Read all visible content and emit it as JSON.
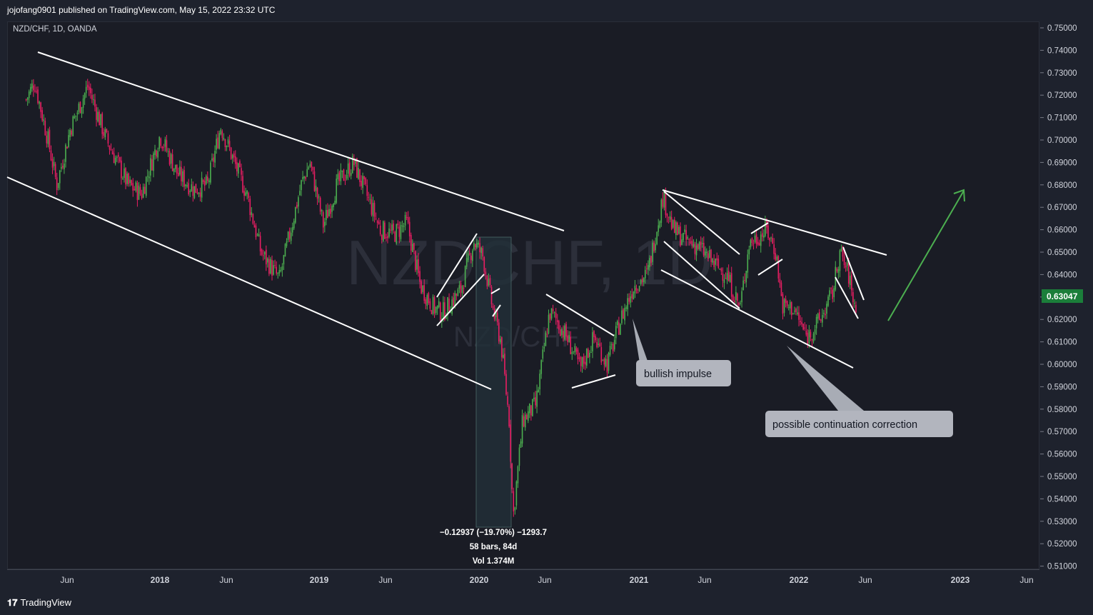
{
  "publisher_line": "jojofang0901 published on TradingView.com, May 15, 2022 23:32 UTC",
  "symbol_line": "NZD/CHF, 1D, OANDA",
  "watermark": {
    "big": "NZDCHF, 1D",
    "small": "NZD/CHF"
  },
  "footer": {
    "logo_mark": "𝟏𝟕",
    "logo_text": "TradingView"
  },
  "price_axis": {
    "ticks": [
      "0.75000",
      "0.74000",
      "0.73000",
      "0.72000",
      "0.71000",
      "0.70000",
      "0.69000",
      "0.68000",
      "0.67000",
      "0.66000",
      "0.65000",
      "0.64000",
      "0.63000",
      "0.62000",
      "0.61000",
      "0.60000",
      "0.59000",
      "0.58000",
      "0.57000",
      "0.56000",
      "0.55000",
      "0.54000",
      "0.53000",
      "0.52000",
      "0.51000"
    ],
    "current_price": "0.63047",
    "current_color": "#1b7e3a"
  },
  "time_axis": [
    {
      "label": "Jun",
      "bold": false
    },
    {
      "label": "2018",
      "bold": true
    },
    {
      "label": "Jun",
      "bold": false
    },
    {
      "label": "2019",
      "bold": true
    },
    {
      "label": "Jun",
      "bold": false
    },
    {
      "label": "2020",
      "bold": true
    },
    {
      "label": "Jun",
      "bold": false
    },
    {
      "label": "2021",
      "bold": true
    },
    {
      "label": "Jun",
      "bold": false
    },
    {
      "label": "2022",
      "bold": true
    },
    {
      "label": "Jun",
      "bold": false
    },
    {
      "label": "2023",
      "bold": true
    },
    {
      "label": "Jun",
      "bold": false
    }
  ],
  "measure": {
    "line1": "−0.12937 (−19.70%) −1293.7",
    "line2": "58 bars, 84d",
    "line3": "Vol 1.374M"
  },
  "annotations": {
    "bullish": "bullish impulse",
    "continuation": "possible continuation correction"
  },
  "colors": {
    "up": "#26a69a",
    "up_bright": "#4caf50",
    "down": "#e91e63",
    "arrow": "#4caf50"
  },
  "chart_data": {
    "type": "candlestick",
    "title": "NZD/CHF, 1D, OANDA",
    "ylim": [
      0.51,
      0.75
    ],
    "x_ticks": [
      "Jun",
      "2018",
      "Jun",
      "2019",
      "Jun",
      "2020",
      "Jun",
      "2021",
      "Jun",
      "2022",
      "Jun",
      "2023",
      "Jun"
    ],
    "close_path": [
      {
        "date": "2017-03-01",
        "price": 0.718
      },
      {
        "date": "2017-03-20",
        "price": 0.726
      },
      {
        "date": "2017-04-20",
        "price": 0.7
      },
      {
        "date": "2017-05-10",
        "price": 0.68
      },
      {
        "date": "2017-06-10",
        "price": 0.705
      },
      {
        "date": "2017-07-20",
        "price": 0.724
      },
      {
        "date": "2017-09-01",
        "price": 0.7
      },
      {
        "date": "2017-10-20",
        "price": 0.68
      },
      {
        "date": "2017-11-20",
        "price": 0.676
      },
      {
        "date": "2018-01-01",
        "price": 0.702
      },
      {
        "date": "2018-02-10",
        "price": 0.685
      },
      {
        "date": "2018-03-20",
        "price": 0.678
      },
      {
        "date": "2018-04-20",
        "price": 0.68
      },
      {
        "date": "2018-05-20",
        "price": 0.706
      },
      {
        "date": "2018-06-20",
        "price": 0.69
      },
      {
        "date": "2018-07-20",
        "price": 0.675
      },
      {
        "date": "2018-08-20",
        "price": 0.65
      },
      {
        "date": "2018-10-01",
        "price": 0.638
      },
      {
        "date": "2018-11-20",
        "price": 0.68
      },
      {
        "date": "2018-12-10",
        "price": 0.69
      },
      {
        "date": "2019-01-10",
        "price": 0.662
      },
      {
        "date": "2019-02-10",
        "price": 0.68
      },
      {
        "date": "2019-03-20",
        "price": 0.69
      },
      {
        "date": "2019-04-20",
        "price": 0.675
      },
      {
        "date": "2019-05-20",
        "price": 0.66
      },
      {
        "date": "2019-06-20",
        "price": 0.658
      },
      {
        "date": "2019-07-20",
        "price": 0.663
      },
      {
        "date": "2019-08-20",
        "price": 0.635
      },
      {
        "date": "2019-09-20",
        "price": 0.625
      },
      {
        "date": "2019-10-10",
        "price": 0.623
      },
      {
        "date": "2019-11-20",
        "price": 0.633
      },
      {
        "date": "2019-12-20",
        "price": 0.655
      },
      {
        "date": "2020-01-10",
        "price": 0.648
      },
      {
        "date": "2020-02-01",
        "price": 0.625
      },
      {
        "date": "2020-02-20",
        "price": 0.61
      },
      {
        "date": "2020-03-10",
        "price": 0.575
      },
      {
        "date": "2020-03-19",
        "price": 0.532
      },
      {
        "date": "2020-04-10",
        "price": 0.575
      },
      {
        "date": "2020-05-10",
        "price": 0.582
      },
      {
        "date": "2020-06-10",
        "price": 0.623
      },
      {
        "date": "2020-06-25",
        "price": 0.62
      },
      {
        "date": "2020-07-20",
        "price": 0.612
      },
      {
        "date": "2020-08-20",
        "price": 0.598
      },
      {
        "date": "2020-09-20",
        "price": 0.612
      },
      {
        "date": "2020-10-20",
        "price": 0.6
      },
      {
        "date": "2020-11-20",
        "price": 0.62
      },
      {
        "date": "2020-12-20",
        "price": 0.635
      },
      {
        "date": "2021-01-20",
        "price": 0.64
      },
      {
        "date": "2021-02-25",
        "price": 0.675
      },
      {
        "date": "2021-03-20",
        "price": 0.66
      },
      {
        "date": "2021-04-20",
        "price": 0.655
      },
      {
        "date": "2021-05-20",
        "price": 0.652
      },
      {
        "date": "2021-06-20",
        "price": 0.645
      },
      {
        "date": "2021-07-20",
        "price": 0.64
      },
      {
        "date": "2021-08-20",
        "price": 0.625
      },
      {
        "date": "2021-09-10",
        "price": 0.654
      },
      {
        "date": "2021-10-01",
        "price": 0.657
      },
      {
        "date": "2021-10-20",
        "price": 0.66
      },
      {
        "date": "2021-11-10",
        "price": 0.65
      },
      {
        "date": "2021-11-25",
        "price": 0.626
      },
      {
        "date": "2021-12-20",
        "price": 0.625
      },
      {
        "date": "2022-01-20",
        "price": 0.612
      },
      {
        "date": "2022-02-20",
        "price": 0.62
      },
      {
        "date": "2022-03-20",
        "price": 0.632
      },
      {
        "date": "2022-04-05",
        "price": 0.65
      },
      {
        "date": "2022-04-25",
        "price": 0.64
      },
      {
        "date": "2022-05-10",
        "price": 0.625
      },
      {
        "date": "2022-05-15",
        "price": 0.63
      }
    ]
  }
}
